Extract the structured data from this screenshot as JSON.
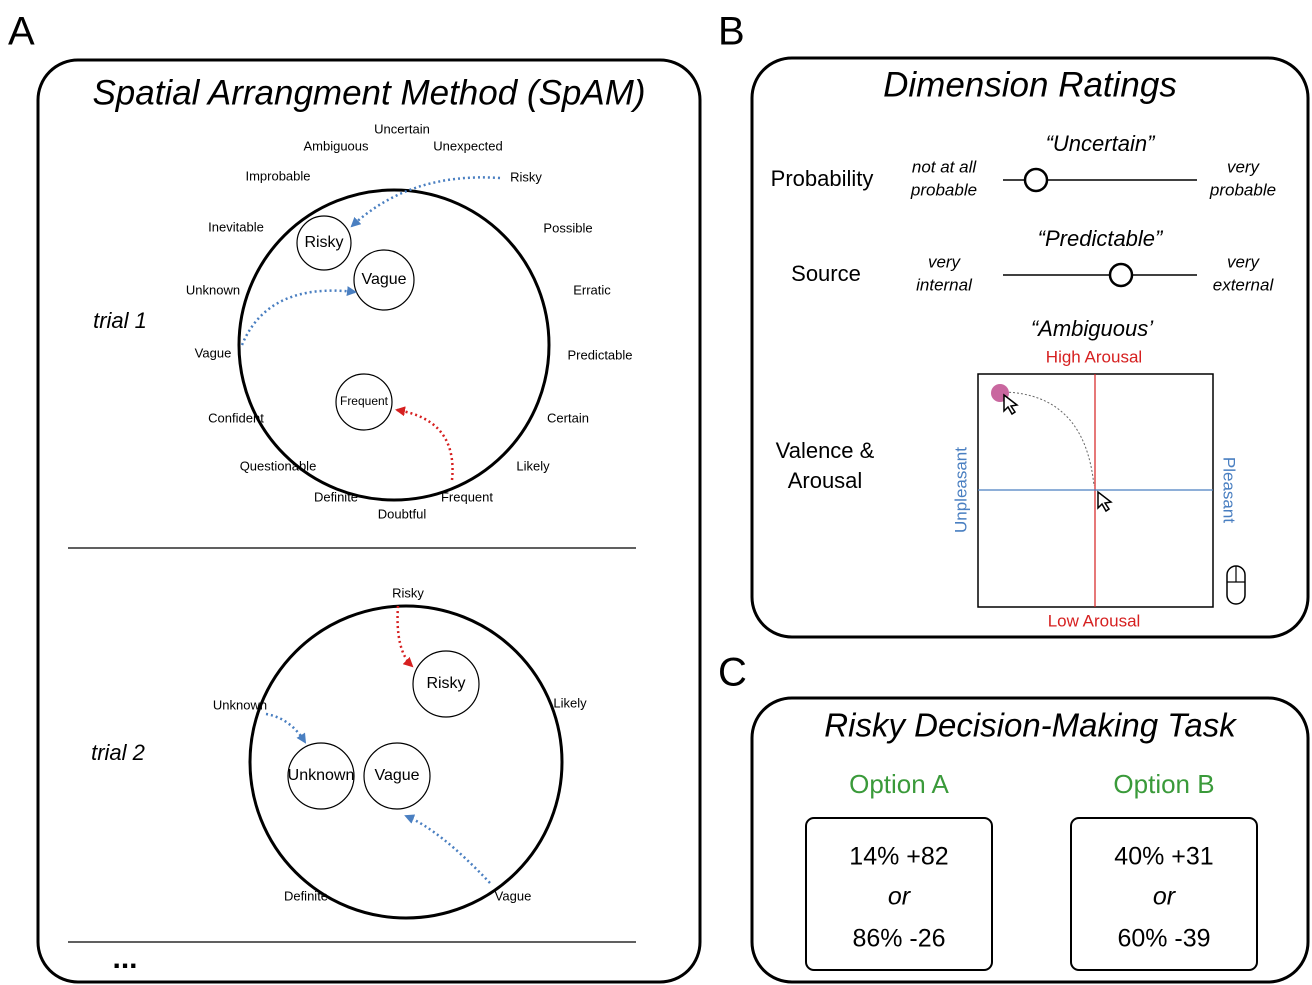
{
  "panel_a": {
    "label": "A",
    "title": "Spatial Arrangment Method (SpAM)",
    "trials": [
      {
        "label": "trial 1",
        "words": [
          "Uncertain",
          "Ambiguous",
          "Unexpected",
          "Risky",
          "Improbable",
          "Possible",
          "Inevitable",
          "Erratic",
          "Unknown",
          "Predictable",
          "Vague",
          "Certain",
          "Confident",
          "Likely",
          "Questionable",
          "Definite",
          "Frequent",
          "Doubtful"
        ],
        "placed": [
          "Risky",
          "Vague",
          "Frequent"
        ]
      },
      {
        "label": "trial 2",
        "words": [
          "Risky",
          "Unknown",
          "Likely",
          "Definite",
          "Vague"
        ],
        "placed": [
          "Risky",
          "Unknown",
          "Vague"
        ]
      }
    ],
    "ellipsis": "..."
  },
  "panel_b": {
    "label": "B",
    "title": "Dimension Ratings",
    "scales": [
      {
        "name": "Probability",
        "word": "“Uncertain”",
        "left": [
          "not at all",
          "probable"
        ],
        "right": [
          "very",
          "probable"
        ]
      },
      {
        "name": "Source",
        "word": "“Predictable”",
        "left": [
          "very",
          "internal"
        ],
        "right": [
          "very",
          "external"
        ]
      }
    ],
    "grid": {
      "name": [
        "Valence &",
        "Arousal"
      ],
      "word": "“Ambiguous’",
      "top": "High Arousal",
      "bottom": "Low Arousal",
      "left": "Unpleasant",
      "right": "Pleasant"
    }
  },
  "panel_c": {
    "label": "C",
    "title": "Risky Decision-Making Task",
    "options": [
      {
        "name": "Option A",
        "lines": [
          "14% +82",
          "or",
          "86% -26"
        ]
      },
      {
        "name": "Option B",
        "lines": [
          "40% +31",
          "or",
          "60% -39"
        ]
      }
    ]
  }
}
